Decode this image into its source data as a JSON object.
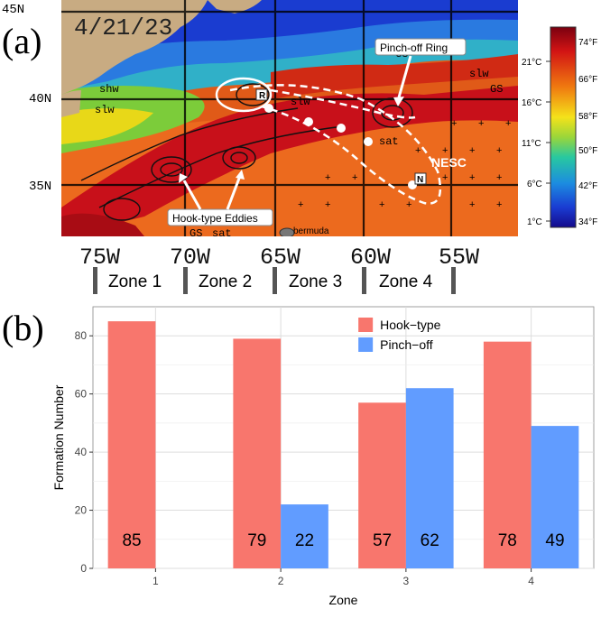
{
  "panel_a": {
    "label": "(a)",
    "date_label": "4/21/23",
    "lat_labels": [
      "45N",
      "40N",
      "35N"
    ],
    "lon_labels": [
      "75W",
      "70W",
      "65W",
      "60W",
      "55W"
    ],
    "zones": [
      "Zone 1",
      "Zone 2",
      "Zone 3",
      "Zone 4"
    ],
    "annotations": {
      "pinch_off": "Pinch-off Ring",
      "hook_type": "Hook-type Eddies",
      "nesc": "NESC",
      "marker_r": "R",
      "marker_n": "N",
      "bermuda": "bermuda"
    },
    "map_labels": {
      "shw": "shw",
      "slw": "slw",
      "gs": "GS",
      "sat": "sat"
    },
    "colorbar": {
      "celsius": [
        "21°C",
        "16°C",
        "11°C",
        "6°C",
        "1°C"
      ],
      "fahrenheit": [
        "74°F",
        "66°F",
        "58°F",
        "50°F",
        "42°F",
        "34°F"
      ]
    },
    "colors": {
      "land": "#c8ab82",
      "warm": "#c8101a",
      "ring": "#ffffff"
    }
  },
  "panel_b": {
    "label": "(b)",
    "chart_data": {
      "type": "bar",
      "categories": [
        "1",
        "2",
        "3",
        "4"
      ],
      "series": [
        {
          "name": "Hook−type",
          "values": [
            85,
            79,
            57,
            78
          ],
          "color": "#f8766d"
        },
        {
          "name": "Pinch−off",
          "values": [
            null,
            22,
            62,
            49
          ],
          "color": "#619cff"
        }
      ],
      "data_labels": {
        "hook": [
          "85",
          "79",
          "57",
          "78"
        ],
        "pinch": [
          "",
          "22",
          "62",
          "49"
        ]
      },
      "xlabel": "Zone",
      "ylabel": "Formation Number",
      "ylim": [
        0,
        90
      ],
      "yticks": [
        0,
        20,
        40,
        60,
        80
      ],
      "ytick_labels": [
        "0",
        "20",
        "40",
        "60",
        "80"
      ],
      "grid": true,
      "legend": "top-right"
    }
  }
}
